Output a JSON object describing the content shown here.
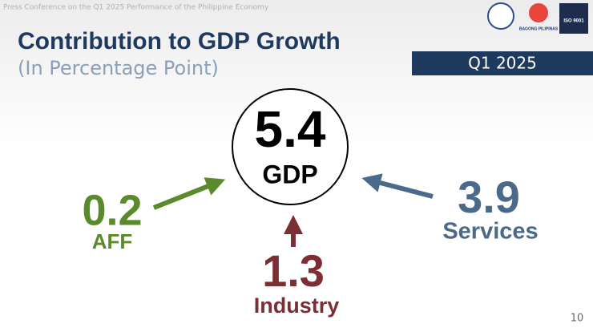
{
  "header": {
    "text": "Press Conference on the Q1 2025 Performance of the Philippine Economy",
    "logos": [
      "BAGONG PILIPINAS",
      "ISO 9001"
    ]
  },
  "title": "Contribution to GDP Growth",
  "subtitle": "(In Percentage Point)",
  "badge": "Q1 2025",
  "center": {
    "value": 5.4,
    "label": "GDP"
  },
  "items": [
    {
      "value": 0.2,
      "label": "AFF"
    },
    {
      "value": 1.3,
      "label": "Industry"
    },
    {
      "value": 3.9,
      "label": "Services"
    }
  ],
  "page_number": "10"
}
